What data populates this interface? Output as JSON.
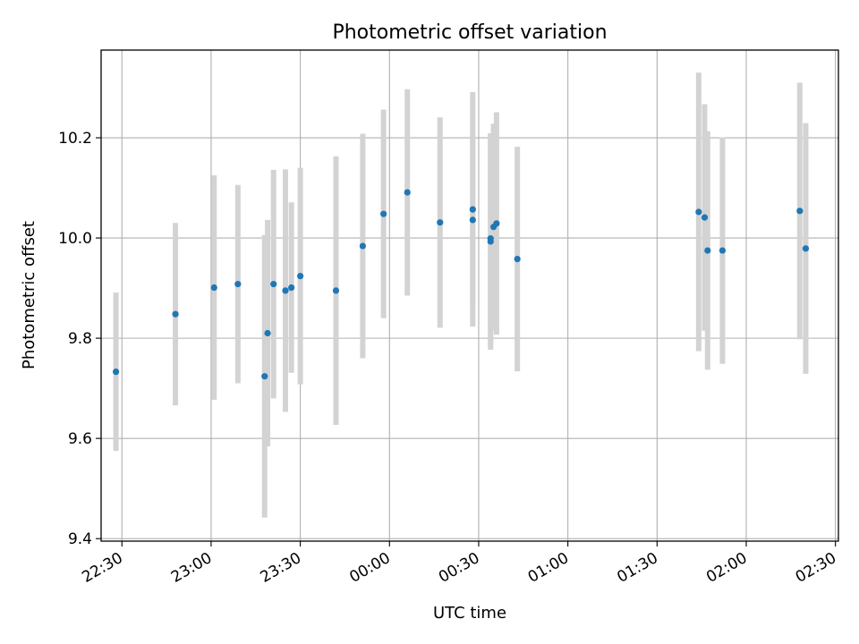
{
  "chart_data": {
    "type": "scatter",
    "title": "Photometric offset variation",
    "xlabel": "UTC time",
    "ylabel": "Photometric offset",
    "xlim": [
      "22:23",
      "02:31"
    ],
    "ylim": [
      9.395,
      10.375
    ],
    "grid": true,
    "x_ticks": [
      "22:30",
      "23:00",
      "23:30",
      "00:00",
      "00:30",
      "01:00",
      "01:30",
      "02:00",
      "02:30"
    ],
    "y_ticks": [
      9.4,
      9.6,
      9.8,
      10.0,
      10.2
    ],
    "y_tick_labels": [
      "9.4",
      "9.6",
      "9.8",
      "10.0",
      "10.2"
    ],
    "series": [
      {
        "point_color": "#1f77b4",
        "errorbar_color": "#d3d3d3",
        "points": [
          {
            "t": "22:28",
            "y": 9.733,
            "err": 0.158
          },
          {
            "t": "22:48",
            "y": 9.848,
            "err": 0.182
          },
          {
            "t": "23:01",
            "y": 9.901,
            "err": 0.224
          },
          {
            "t": "23:09",
            "y": 9.908,
            "err": 0.198
          },
          {
            "t": "23:18",
            "y": 9.724,
            "err": 0.282
          },
          {
            "t": "23:19",
            "y": 9.81,
            "err": 0.226
          },
          {
            "t": "23:21",
            "y": 9.908,
            "err": 0.228
          },
          {
            "t": "23:25",
            "y": 9.895,
            "err": 0.242
          },
          {
            "t": "23:27",
            "y": 9.901,
            "err": 0.17
          },
          {
            "t": "23:30",
            "y": 9.924,
            "err": 0.216
          },
          {
            "t": "23:42",
            "y": 9.895,
            "err": 0.268
          },
          {
            "t": "23:51",
            "y": 9.984,
            "err": 0.224
          },
          {
            "t": "23:58",
            "y": 10.048,
            "err": 0.208
          },
          {
            "t": "00:06",
            "y": 10.091,
            "err": 0.206
          },
          {
            "t": "00:17",
            "y": 10.031,
            "err": 0.21
          },
          {
            "t": "00:28",
            "y": 10.057,
            "err": 0.234
          },
          {
            "t": "00:28",
            "y": 10.036,
            "err": 0.17
          },
          {
            "t": "00:34",
            "y": 9.993,
            "err": 0.216
          },
          {
            "t": "00:34",
            "y": 9.999,
            "err": 0.21
          },
          {
            "t": "00:35",
            "y": 10.022,
            "err": 0.206
          },
          {
            "t": "00:36",
            "y": 10.029,
            "err": 0.222
          },
          {
            "t": "00:43",
            "y": 9.958,
            "err": 0.224
          },
          {
            "t": "01:44",
            "y": 10.052,
            "err": 0.278
          },
          {
            "t": "01:46",
            "y": 10.041,
            "err": 0.226
          },
          {
            "t": "01:47",
            "y": 9.975,
            "err": 0.238
          },
          {
            "t": "01:52",
            "y": 9.975,
            "err": 0.226
          },
          {
            "t": "02:18",
            "y": 10.054,
            "err": 0.256
          },
          {
            "t": "02:20",
            "y": 9.979,
            "err": 0.25
          }
        ]
      }
    ]
  }
}
